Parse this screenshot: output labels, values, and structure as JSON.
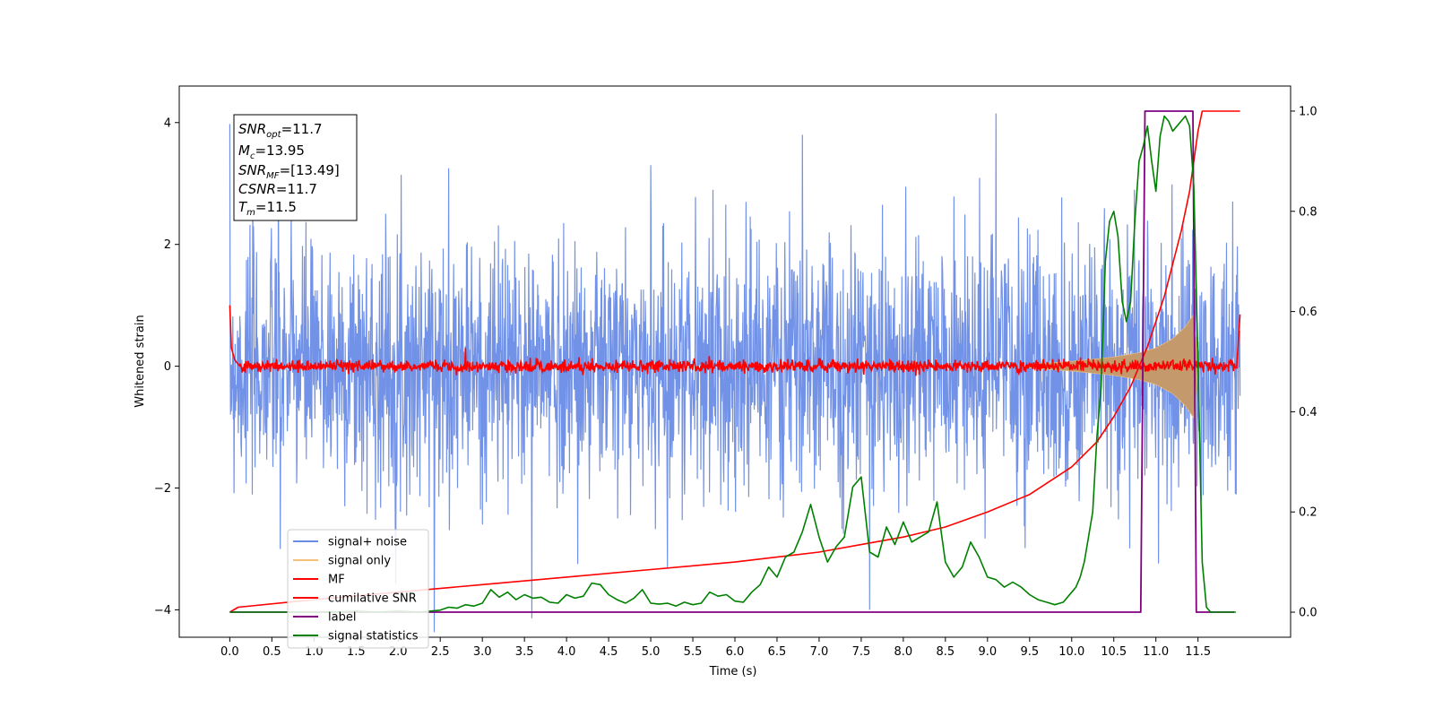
{
  "chart_data": {
    "type": "line",
    "xlabel": "Time (s)",
    "ylabel": "Whitened strain",
    "xlim": [
      -0.6,
      12.6
    ],
    "ylim": [
      -4.45,
      4.6
    ],
    "y2lim": [
      -0.05,
      1.05
    ],
    "x_ticks": [
      "0.0",
      "0.5",
      "1.0",
      "1.5",
      "2.0",
      "2.5",
      "3.0",
      "3.5",
      "4.0",
      "4.5",
      "5.0",
      "5.5",
      "6.0",
      "6.5",
      "7.0",
      "7.5",
      "8.0",
      "8.5",
      "9.0",
      "9.5",
      "10.0",
      "10.5",
      "11.0",
      "11.5"
    ],
    "y_ticks": [
      "4",
      "2",
      "0",
      "−2",
      "−4"
    ],
    "y2_ticks": [
      "1.0",
      "0.8",
      "0.6",
      "0.4",
      "0.2",
      "0.0"
    ],
    "grid": false,
    "legend_position": "lower-left",
    "colors": {
      "signal_noise": "#6a8ce6",
      "signal_only": "#f5c07a",
      "signal_only_fill": "#c49a6c",
      "mf": "#ff0000",
      "cumulative_snr": "#ff0000",
      "label": "#800080",
      "signal_statistics": "#008000"
    },
    "annotation": {
      "line1": {
        "name": "SNR",
        "sub": "opt",
        "value": "=11.7"
      },
      "line2": {
        "name": "M",
        "sub": "c",
        "value": "=13.95"
      },
      "line3": {
        "name": "SNR",
        "sub": "MF",
        "value": "=[13.49]"
      },
      "line4": {
        "name": "CSNR",
        "sub": "",
        "value": "=11.7"
      },
      "line5": {
        "name": "T",
        "sub": "m",
        "value": "=11.5"
      }
    },
    "series": [
      {
        "name": "signal+ noise",
        "axis": "left",
        "style": "noise band",
        "x_range": [
          0.0,
          12.0
        ],
        "envelope_typical": [
          -2.3,
          2.4
        ],
        "notable_peaks": [
          {
            "x": 9.1,
            "y": 4.15
          },
          {
            "x": 6.8,
            "y": 3.8
          },
          {
            "x": 5.0,
            "y": 3.3
          },
          {
            "x": 2.6,
            "y": 3.25
          },
          {
            "x": 7.6,
            "y": -4.0
          },
          {
            "x": 5.2,
            "y": -3.3
          },
          {
            "x": 3.0,
            "y": -2.6
          },
          {
            "x": 0.6,
            "y": -3.0
          }
        ]
      },
      {
        "name": "signal only",
        "axis": "left",
        "style": "chirp envelope",
        "x": [
          9.5,
          10.0,
          10.5,
          10.8,
          11.0,
          11.2,
          11.35,
          11.45,
          11.5
        ],
        "y_amp": [
          0.03,
          0.08,
          0.15,
          0.22,
          0.3,
          0.45,
          0.65,
          0.85,
          0.0
        ]
      },
      {
        "name": "MF",
        "axis": "left",
        "style": "red noise around 0",
        "x_range": [
          0.0,
          12.0
        ],
        "start": [
          [
            0.0,
            1.0
          ],
          [
            0.02,
            0.3
          ],
          [
            0.06,
            0.1
          ],
          [
            0.12,
            0.0
          ]
        ],
        "end": [
          [
            11.96,
            0.0
          ],
          [
            12.0,
            0.85
          ]
        ],
        "amplitude": 0.12,
        "spikes": [
          {
            "x": 2.8,
            "y": 0.3
          }
        ]
      },
      {
        "name": "cumilative SNR",
        "axis": "right",
        "x": [
          0.0,
          0.1,
          1.0,
          2.0,
          3.0,
          4.0,
          5.0,
          6.0,
          7.0,
          7.5,
          8.0,
          8.5,
          9.0,
          9.5,
          10.0,
          10.3,
          10.5,
          10.7,
          10.9,
          11.1,
          11.3,
          11.4,
          11.45,
          11.5,
          11.55,
          12.0
        ],
        "values": [
          0.0,
          0.01,
          0.025,
          0.04,
          0.055,
          0.07,
          0.085,
          0.1,
          0.12,
          0.135,
          0.15,
          0.17,
          0.2,
          0.235,
          0.29,
          0.34,
          0.39,
          0.45,
          0.53,
          0.63,
          0.76,
          0.84,
          0.9,
          0.96,
          1.0,
          1.0
        ]
      },
      {
        "name": "label",
        "axis": "right",
        "x": [
          0.0,
          10.82,
          10.87,
          11.44,
          11.48,
          11.93
        ],
        "values": [
          0.0,
          0.0,
          1.0,
          1.0,
          0.0,
          0.0
        ]
      },
      {
        "name": "signal statistics",
        "axis": "right",
        "x": [
          0.0,
          0.25,
          0.5,
          0.75,
          1.0,
          1.25,
          1.5,
          1.75,
          2.0,
          2.25,
          2.5,
          2.6,
          2.7,
          2.8,
          2.9,
          3.0,
          3.1,
          3.2,
          3.3,
          3.4,
          3.5,
          3.6,
          3.7,
          3.8,
          3.9,
          4.0,
          4.1,
          4.2,
          4.3,
          4.4,
          4.5,
          4.6,
          4.7,
          4.8,
          4.9,
          5.0,
          5.1,
          5.2,
          5.3,
          5.4,
          5.5,
          5.6,
          5.7,
          5.8,
          5.9,
          6.0,
          6.1,
          6.2,
          6.3,
          6.4,
          6.5,
          6.6,
          6.7,
          6.8,
          6.9,
          7.0,
          7.1,
          7.2,
          7.3,
          7.4,
          7.5,
          7.6,
          7.7,
          7.8,
          7.9,
          8.0,
          8.1,
          8.2,
          8.3,
          8.4,
          8.5,
          8.6,
          8.7,
          8.8,
          8.9,
          9.0,
          9.1,
          9.2,
          9.3,
          9.4,
          9.5,
          9.6,
          9.7,
          9.8,
          9.9,
          10.0,
          10.05,
          10.1,
          10.15,
          10.2,
          10.25,
          10.3,
          10.35,
          10.4,
          10.45,
          10.5,
          10.55,
          10.6,
          10.65,
          10.7,
          10.75,
          10.8,
          10.85,
          10.9,
          10.95,
          11.0,
          11.05,
          11.1,
          11.15,
          11.2,
          11.25,
          11.3,
          11.35,
          11.4,
          11.45,
          11.5,
          11.55,
          11.6,
          11.65,
          11.7,
          11.75,
          11.8,
          11.85,
          11.9,
          11.95
        ],
        "values": [
          0.0,
          0.0,
          0.0,
          0.0,
          0.0,
          0.0,
          0.002,
          0.0,
          0.002,
          0.0,
          0.004,
          0.01,
          0.008,
          0.015,
          0.012,
          0.018,
          0.045,
          0.03,
          0.04,
          0.025,
          0.035,
          0.028,
          0.03,
          0.02,
          0.018,
          0.035,
          0.028,
          0.032,
          0.058,
          0.055,
          0.035,
          0.025,
          0.018,
          0.028,
          0.045,
          0.018,
          0.016,
          0.018,
          0.012,
          0.02,
          0.015,
          0.018,
          0.04,
          0.032,
          0.035,
          0.022,
          0.02,
          0.04,
          0.055,
          0.09,
          0.07,
          0.11,
          0.12,
          0.16,
          0.215,
          0.15,
          0.1,
          0.13,
          0.15,
          0.25,
          0.27,
          0.12,
          0.11,
          0.17,
          0.135,
          0.18,
          0.14,
          0.15,
          0.16,
          0.22,
          0.1,
          0.07,
          0.09,
          0.14,
          0.11,
          0.07,
          0.065,
          0.05,
          0.06,
          0.05,
          0.035,
          0.025,
          0.02,
          0.015,
          0.02,
          0.04,
          0.05,
          0.07,
          0.1,
          0.15,
          0.2,
          0.35,
          0.45,
          0.7,
          0.78,
          0.8,
          0.75,
          0.62,
          0.58,
          0.62,
          0.78,
          0.9,
          0.93,
          0.97,
          0.9,
          0.84,
          0.95,
          0.99,
          0.98,
          0.96,
          0.97,
          0.98,
          0.99,
          0.97,
          0.85,
          0.5,
          0.1,
          0.01,
          0.0,
          0.0,
          0.0,
          0.0,
          0.0,
          0.0,
          0.0
        ]
      }
    ]
  }
}
